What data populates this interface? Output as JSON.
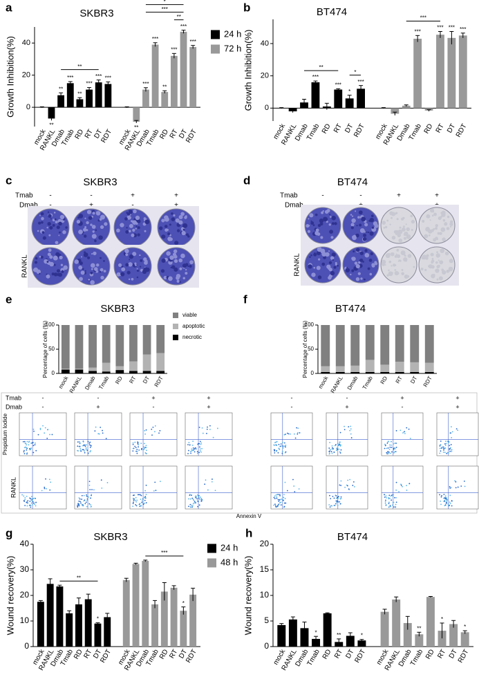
{
  "panel_labels": [
    "a",
    "b",
    "c",
    "d",
    "e",
    "f",
    "g",
    "h"
  ],
  "photo_c": {
    "title": "SKBR3",
    "rows": [
      "Tmab",
      "Dmab"
    ],
    "signs": [
      [
        "-",
        "-",
        "+",
        "+"
      ],
      [
        "-",
        "+",
        "-",
        "+"
      ]
    ],
    "side_label": "RANKL"
  },
  "photo_d": {
    "title": "BT474",
    "rows": [
      "Tmab",
      "Dmab"
    ],
    "signs": [
      [
        "-",
        "-",
        "+",
        "+"
      ],
      [
        "-",
        "+",
        "-",
        "+"
      ]
    ],
    "side_label": "RANKL"
  },
  "flow": {
    "rows": [
      "Tmab",
      "Dmab"
    ],
    "signs": [
      [
        "-",
        "-",
        "+",
        "+"
      ],
      [
        "-",
        "+",
        "-",
        "+"
      ]
    ],
    "y_label": "Propidium Iodide",
    "side_label": "RANKL",
    "x_label": "Annexin V"
  },
  "chart_data": [
    {
      "type": "bar",
      "title": "SKBR3",
      "ylabel": "Growth Inhibition(%)",
      "categories": [
        "mock",
        "RANKL",
        "Dmab",
        "Tmab",
        "RD",
        "RT",
        "DT",
        "RDT",
        "mock",
        "RANKL",
        "Dmab",
        "Tmab",
        "RD",
        "RT",
        "DT",
        "RDT"
      ],
      "series": [
        {
          "name": "24 h",
          "color": "#000000",
          "values": [
            0,
            -7,
            7.5,
            15,
            5,
            11,
            15.5,
            14.5,
            null,
            null,
            null,
            null,
            null,
            null,
            null,
            null
          ],
          "errors": [
            0.3,
            1.2,
            1.5,
            1,
            1,
            1.3,
            1.5,
            1.3,
            null,
            null,
            null,
            null,
            null,
            null,
            null,
            null
          ],
          "annotations": [
            null,
            "**",
            "**",
            "***",
            "**",
            "***",
            "***",
            "***",
            null,
            null,
            null,
            null,
            null,
            null,
            null,
            null
          ]
        },
        {
          "name": "72 h",
          "color": "#999999",
          "values": [
            null,
            null,
            null,
            null,
            null,
            null,
            null,
            null,
            0,
            -9,
            11,
            39,
            9.5,
            32,
            47,
            37.5
          ],
          "errors": [
            null,
            null,
            null,
            null,
            null,
            null,
            null,
            null,
            0.3,
            0.8,
            1.2,
            1.2,
            0.8,
            1.5,
            1,
            1
          ],
          "annotations": [
            null,
            null,
            null,
            null,
            null,
            null,
            null,
            null,
            null,
            "**",
            "***",
            "***",
            "**",
            "***",
            "***",
            "***"
          ]
        }
      ],
      "brackets": [
        {
          "from": 2,
          "to": 6,
          "label": "**"
        },
        {
          "from": 13,
          "to": 14,
          "label": "**"
        },
        {
          "from": 10,
          "to": 14,
          "label": "***"
        },
        {
          "from": 10,
          "to": 14,
          "label": "*"
        },
        {
          "from": 14,
          "to": 15,
          "label": "**"
        }
      ],
      "ylim": [
        -12,
        50
      ],
      "yticks": [
        0,
        20,
        40
      ]
    },
    {
      "type": "bar",
      "title": "BT474",
      "ylabel": "Growth Inhibition(%)",
      "categories": [
        "mock",
        "RANKL",
        "Dmab",
        "Tmab",
        "RD",
        "RT",
        "DT",
        "RDT",
        "mock",
        "RANKL",
        "Dmab",
        "Tmab",
        "RD",
        "RT",
        "DT",
        "RDT"
      ],
      "series": [
        {
          "color": "#000000",
          "values": [
            0,
            -2,
            3.5,
            16,
            1,
            11.5,
            6,
            12,
            null,
            null,
            null,
            null,
            null,
            null,
            null,
            null
          ],
          "errors": [
            0.3,
            0.8,
            2,
            0.8,
            2,
            0.5,
            2,
            2,
            null,
            null,
            null,
            null,
            null,
            null,
            null,
            null
          ],
          "annotations": [
            null,
            null,
            null,
            "***",
            null,
            "***",
            "*",
            "***",
            null,
            null,
            null,
            null,
            null,
            null,
            null,
            null
          ]
        },
        {
          "color": "#999999",
          "values": [
            null,
            null,
            null,
            null,
            null,
            null,
            null,
            null,
            0,
            -3.5,
            1.5,
            43,
            -1.5,
            45.5,
            43.5,
            45
          ],
          "errors": [
            null,
            null,
            null,
            null,
            null,
            null,
            null,
            null,
            0.3,
            1,
            0.5,
            2,
            0.5,
            2,
            4,
            1.5
          ],
          "annotations": [
            null,
            null,
            null,
            null,
            null,
            null,
            null,
            null,
            null,
            null,
            null,
            "***",
            null,
            "***",
            "***",
            "***"
          ]
        }
      ],
      "brackets": [
        {
          "from": 2,
          "to": 5,
          "label": "**"
        },
        {
          "from": 6,
          "to": 7,
          "label": "*"
        },
        {
          "from": 10,
          "to": 13,
          "label": "***"
        }
      ],
      "ylim": [
        -8,
        55
      ],
      "yticks": [
        0,
        20,
        40
      ]
    },
    {
      "type": "stacked_bar",
      "title": "SKBR3",
      "ylabel": "Percentage of cells (%)",
      "categories": [
        "mock",
        "RANKL",
        "Dmab",
        "Tmab",
        "RD",
        "RT",
        "DT",
        "RDT"
      ],
      "series": [
        {
          "name": "viable",
          "color": "#808080",
          "values": [
            90,
            90,
            88,
            78,
            85,
            75,
            61,
            58
          ]
        },
        {
          "name": "apoptotic",
          "color": "#b3b3b3",
          "values": [
            2,
            2,
            7,
            18,
            8,
            20,
            34,
            37
          ]
        },
        {
          "name": "necrotic",
          "color": "#000000",
          "values": [
            8,
            8,
            5,
            4,
            7,
            5,
            5,
            5
          ]
        }
      ],
      "ylim": [
        0,
        100
      ],
      "yticks": [
        0,
        50,
        100
      ]
    },
    {
      "type": "stacked_bar",
      "title": "BT474",
      "ylabel": "Percentage of cells (%)",
      "categories": [
        "mock",
        "RANKL",
        "Dmab",
        "Tmab",
        "RD",
        "RT",
        "DT",
        "RDT"
      ],
      "series": [
        {
          "color": "#808080",
          "values": [
            85,
            85,
            84,
            72,
            82,
            76,
            77,
            78
          ]
        },
        {
          "color": "#b3b3b3",
          "values": [
            12,
            12,
            13,
            25,
            15,
            21,
            20,
            19
          ]
        },
        {
          "color": "#000000",
          "values": [
            3,
            3,
            3,
            3,
            3,
            3,
            3,
            3
          ]
        }
      ],
      "ylim": [
        0,
        100
      ],
      "yticks": [
        0,
        50,
        100
      ]
    },
    {
      "type": "bar",
      "title": "SKBR3",
      "ylabel": "Wound recovery(%)",
      "categories": [
        "mock",
        "RANKL",
        "Dmab",
        "Tmab",
        "RD",
        "RT",
        "DT",
        "RDT",
        "mock",
        "RANKL",
        "Dmab",
        "Tmab",
        "RD",
        "RT",
        "DT",
        "RDT"
      ],
      "series": [
        {
          "name": "24 h",
          "color": "#000000",
          "values": [
            17.5,
            24.5,
            23.5,
            13,
            16.5,
            18.5,
            9,
            11.5,
            null,
            null,
            null,
            null,
            null,
            null,
            null,
            null
          ],
          "errors": [
            0.5,
            2,
            0.5,
            1,
            2.5,
            2,
            0.3,
            1.5,
            null,
            null,
            null,
            null,
            null,
            null,
            null,
            null
          ],
          "annotations": [
            null,
            null,
            null,
            null,
            null,
            null,
            "*",
            null,
            null,
            null,
            null,
            null,
            null,
            null,
            null,
            null
          ]
        },
        {
          "name": "48 h",
          "color": "#999999",
          "values": [
            null,
            null,
            null,
            null,
            null,
            null,
            null,
            null,
            26,
            32.3,
            33.5,
            16.5,
            21.5,
            23,
            14,
            20.3
          ],
          "errors": [
            null,
            null,
            null,
            null,
            null,
            null,
            null,
            null,
            0.7,
            0.3,
            0.3,
            1.5,
            3.5,
            0.8,
            1.5,
            2.5
          ],
          "annotations": [
            null,
            null,
            null,
            null,
            null,
            null,
            null,
            null,
            null,
            null,
            null,
            null,
            null,
            null,
            "*",
            null
          ]
        }
      ],
      "brackets": [
        {
          "from": 2,
          "to": 6,
          "label": "**"
        },
        {
          "from": 10,
          "to": 14,
          "label": "***"
        }
      ],
      "ylim": [
        0,
        40
      ],
      "yticks": [
        0,
        10,
        20,
        30,
        40
      ]
    },
    {
      "type": "bar",
      "title": "BT474",
      "ylabel": "Wound recovery(%)",
      "categories": [
        "mock",
        "RANKL",
        "Dmab",
        "Tmab",
        "RD",
        "RT",
        "DT",
        "RDT",
        "mock",
        "RANKL",
        "Dmab",
        "Tmab",
        "RD",
        "RT",
        "DT",
        "RDT"
      ],
      "series": [
        {
          "color": "#000000",
          "values": [
            4.2,
            5.3,
            3.6,
            1.5,
            6.5,
            0.9,
            2.1,
            1.2,
            null,
            null,
            null,
            null,
            null,
            null,
            null,
            null
          ],
          "errors": [
            0.3,
            0.5,
            1.2,
            0.5,
            0.1,
            0.6,
            0.6,
            0.2,
            null,
            null,
            null,
            null,
            null,
            null,
            null,
            null
          ],
          "annotations": [
            null,
            null,
            null,
            "*",
            null,
            "**",
            null,
            "*",
            null,
            null,
            null,
            null,
            null,
            null,
            null,
            null
          ]
        },
        {
          "color": "#999999",
          "values": [
            null,
            null,
            null,
            null,
            null,
            null,
            null,
            null,
            6.8,
            9.2,
            4.6,
            2.4,
            9.7,
            3.1,
            4.4,
            2.8
          ],
          "errors": [
            null,
            null,
            null,
            null,
            null,
            null,
            null,
            null,
            0.5,
            0.5,
            1.3,
            0.4,
            0.1,
            1.5,
            0.7,
            0.3
          ],
          "annotations": [
            null,
            null,
            null,
            null,
            null,
            null,
            null,
            null,
            null,
            null,
            null,
            "**",
            null,
            "*",
            null,
            "*"
          ]
        }
      ],
      "ylim": [
        0,
        20
      ],
      "yticks": [
        0,
        5,
        10,
        15,
        20
      ]
    }
  ]
}
